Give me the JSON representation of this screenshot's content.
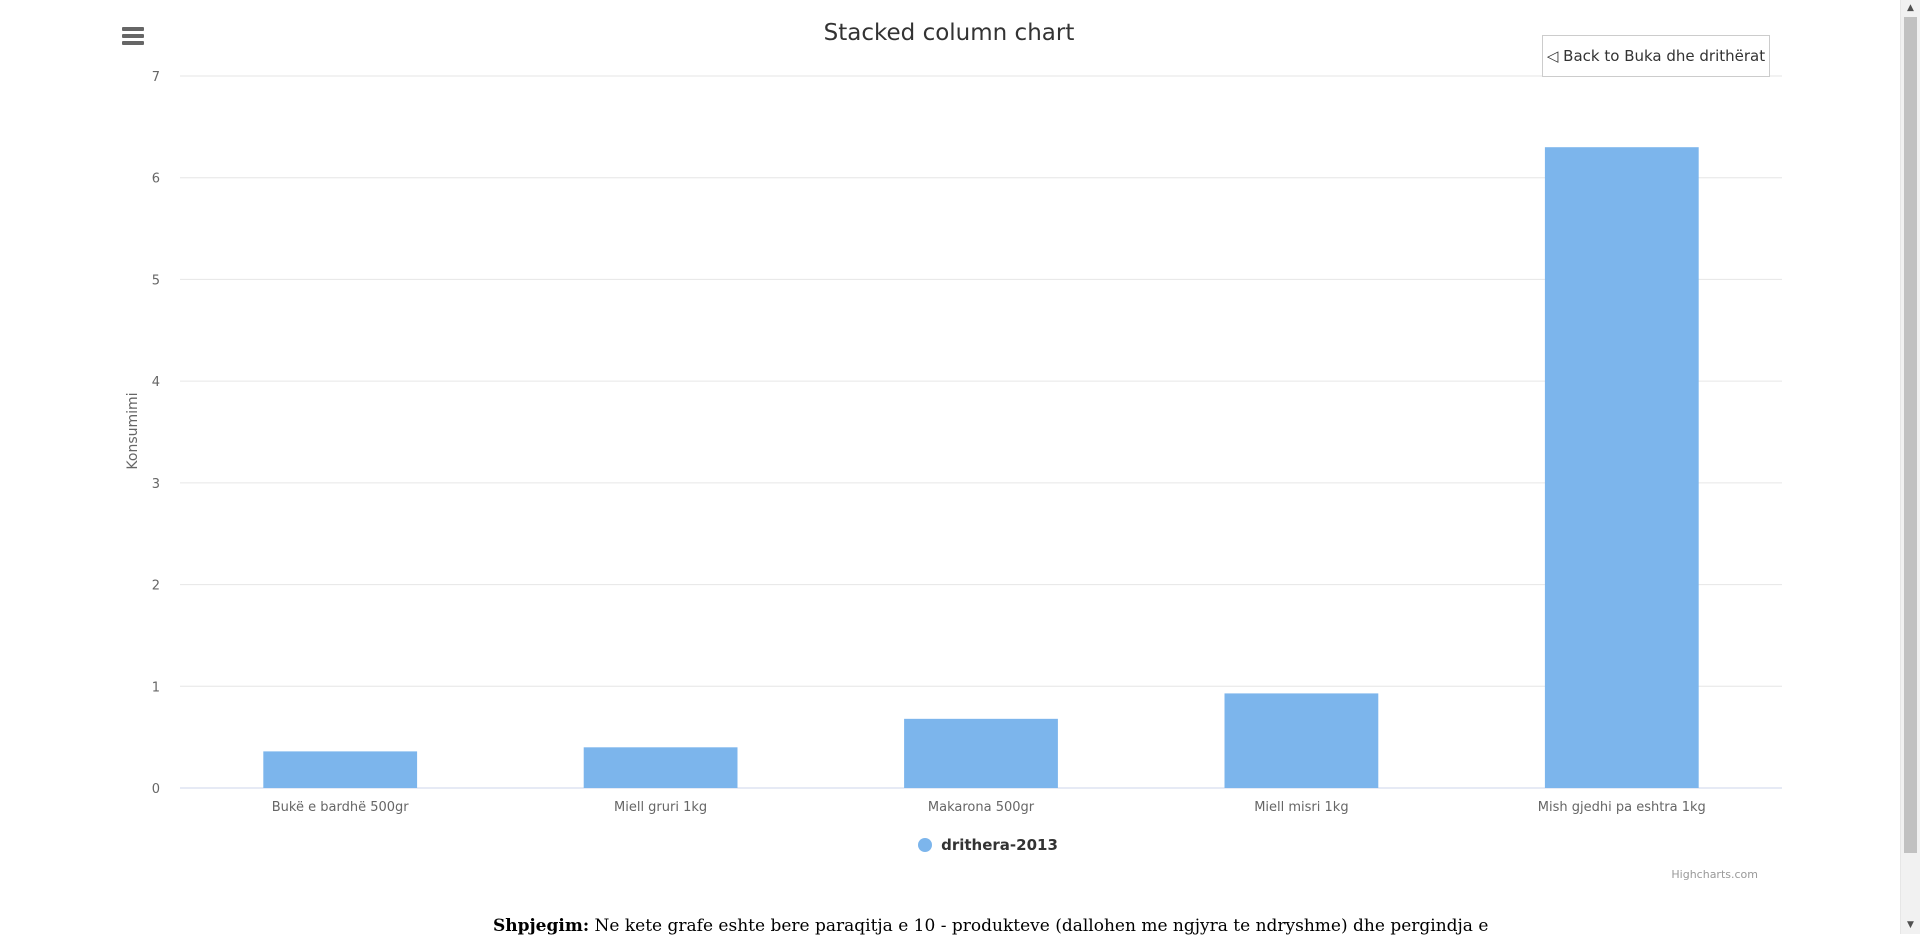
{
  "chart_data": {
    "type": "bar",
    "title": "Stacked column chart",
    "ylabel": "Konsumimi",
    "xlabel": "",
    "ylim": [
      0,
      7
    ],
    "yticks": [
      0,
      1,
      2,
      3,
      4,
      5,
      6,
      7
    ],
    "categories": [
      "Bukë e bardhë 500gr",
      "Miell gruri 1kg",
      "Makarona 500gr",
      "Miell misri 1kg",
      "Mish gjedhi pa eshtra 1kg"
    ],
    "series": [
      {
        "name": "drithera-2013",
        "values": [
          0.36,
          0.4,
          0.68,
          0.93,
          6.3
        ],
        "color": "#7cb5ec"
      }
    ],
    "grid": true,
    "legend_position": "bottom-center"
  },
  "ui": {
    "menu_icon": "hamburger-menu-icon",
    "back_button_label": "◁ Back to Buka dhe drithërat",
    "legend_label": "drithera-2013",
    "legend_color": "#7cb5ec",
    "credits": "Highcharts.com",
    "explanation_label": "Shpjegim:",
    "explanation_text": "Ne kete grafe eshte bere paraqitja e 10 - produkteve (dallohen me ngjyra te ndryshme) dhe pergindja e",
    "scroll_up": "▲",
    "scroll_down": "▼"
  }
}
